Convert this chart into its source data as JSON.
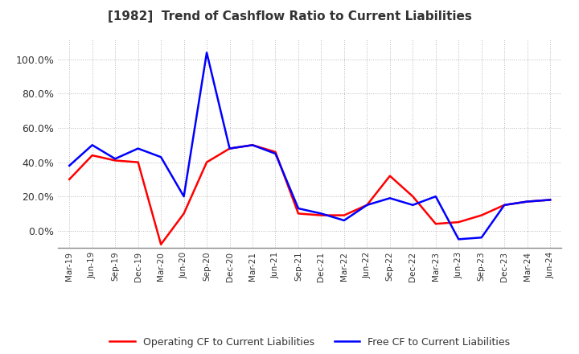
{
  "title": "[1982]  Trend of Cashflow Ratio to Current Liabilities",
  "x_labels": [
    "Mar-19",
    "Jun-19",
    "Sep-19",
    "Dec-19",
    "Mar-20",
    "Jun-20",
    "Sep-20",
    "Dec-20",
    "Mar-21",
    "Jun-21",
    "Sep-21",
    "Dec-21",
    "Mar-22",
    "Jun-22",
    "Sep-22",
    "Dec-22",
    "Mar-23",
    "Jun-23",
    "Sep-23",
    "Dec-23",
    "Mar-24",
    "Jun-24"
  ],
  "operating_cf": [
    0.3,
    0.44,
    0.41,
    0.4,
    -0.08,
    0.1,
    0.4,
    0.48,
    0.5,
    0.46,
    0.1,
    0.09,
    0.09,
    0.15,
    0.32,
    0.2,
    0.04,
    0.05,
    0.09,
    0.15,
    0.17,
    0.18
  ],
  "free_cf": [
    0.38,
    0.5,
    0.42,
    0.48,
    0.43,
    0.2,
    1.04,
    0.48,
    0.5,
    0.45,
    0.13,
    0.1,
    0.06,
    0.15,
    0.19,
    0.15,
    0.2,
    -0.05,
    -0.04,
    0.15,
    0.17,
    0.18
  ],
  "operating_color": "#FF0000",
  "free_color": "#0000FF",
  "ylim": [
    -0.1,
    1.12
  ],
  "yticks": [
    0.0,
    0.2,
    0.4,
    0.6,
    0.8,
    1.0
  ],
  "title_color": "#333333",
  "background_color": "#FFFFFF",
  "grid_color": "#BBBBBB",
  "legend_labels": [
    "Operating CF to Current Liabilities",
    "Free CF to Current Liabilities"
  ]
}
